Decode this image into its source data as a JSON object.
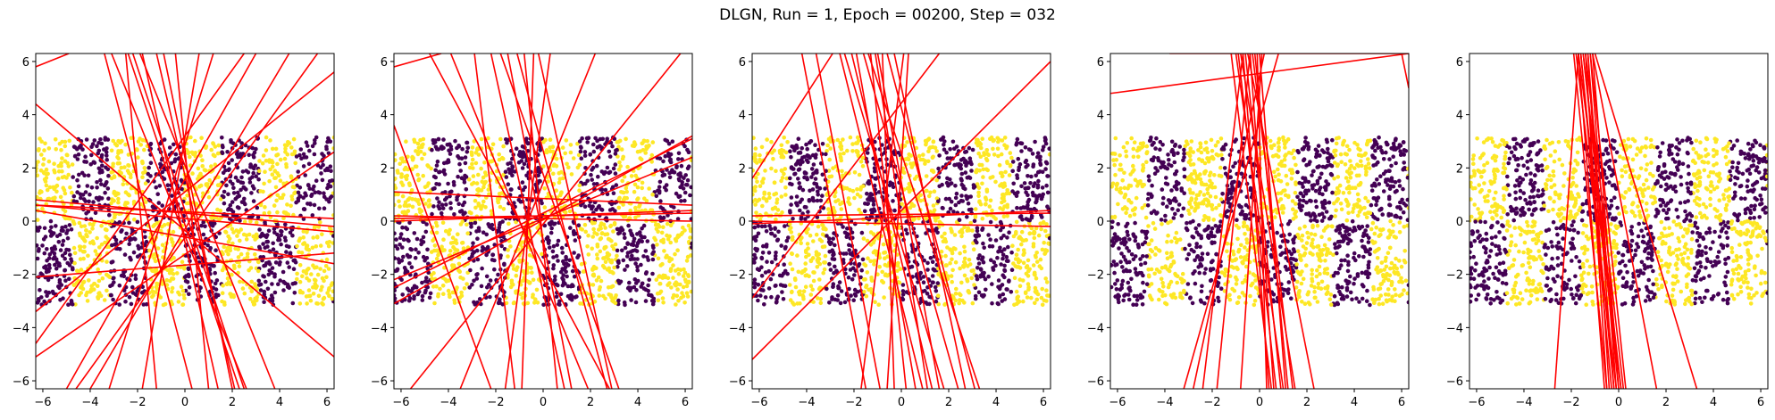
{
  "figure": {
    "title": "DLGN, Run = 1, Epoch = 00200, Step = 032"
  },
  "chart_data": [
    {
      "type": "scatter",
      "xlim": [
        -6.3,
        6.3
      ],
      "ylim": [
        -6.3,
        6.3
      ],
      "xticks": [
        -6,
        -4,
        -2,
        0,
        2,
        4,
        6
      ],
      "yticks": [
        -6,
        -4,
        -2,
        0,
        2,
        4,
        6
      ],
      "class_colors": {
        "class_0": "#440154",
        "class_1": "#fde725"
      },
      "line_color": "#ff0000",
      "lines": [
        [
          -6.3,
          0.6,
          6.3,
          -0.4
        ],
        [
          -6.3,
          0.4,
          6.3,
          -1.6
        ],
        [
          -6.3,
          -2.1,
          6.3,
          -1.2
        ],
        [
          -6.3,
          0.8,
          6.3,
          -0.2
        ],
        [
          -6.3,
          -3.4,
          6.3,
          5.6
        ],
        [
          -6.3,
          -5.1,
          6.3,
          2.6
        ],
        [
          -6.3,
          -4.6,
          2.5,
          6.3
        ],
        [
          -6.3,
          5.8,
          -4.9,
          6.3
        ],
        [
          -5,
          -6.3,
          3,
          6.3
        ],
        [
          -3.2,
          -6.3,
          1.2,
          6.3
        ],
        [
          -3.4,
          6.3,
          0.3,
          -6.3
        ],
        [
          -2.4,
          6.3,
          2.3,
          -6.3
        ],
        [
          -1.8,
          6.3,
          1.4,
          -6.3
        ],
        [
          -1.2,
          6.3,
          2.1,
          -6.3
        ],
        [
          -2.5,
          6.3,
          -1.2,
          -6.3
        ],
        [
          -0.4,
          6.3,
          1,
          -6.3
        ],
        [
          0.6,
          6.3,
          -1.8,
          -6.3
        ],
        [
          -4,
          -6.3,
          4.4,
          6.3
        ],
        [
          -1.9,
          6.3,
          3.8,
          -6.3
        ],
        [
          -2.2,
          6.3,
          2.5,
          -6.3
        ],
        [
          -4.6,
          -6.3,
          5.6,
          6.3
        ],
        [
          -6.3,
          4.4,
          6.3,
          -5.1
        ],
        [
          -0.9,
          6.3,
          2,
          -6.3
        ],
        [
          -6.3,
          0.6,
          6.3,
          0.1
        ],
        [
          -3.1,
          6.3,
          2.6,
          -6.3
        ]
      ]
    },
    {
      "type": "scatter",
      "xlim": [
        -6.3,
        6.3
      ],
      "ylim": [
        -6.3,
        6.3
      ],
      "xticks": [
        -6,
        -4,
        -2,
        0,
        2,
        4,
        6
      ],
      "yticks": [
        -6,
        -4,
        -2,
        0,
        2,
        4,
        6
      ],
      "class_colors": {
        "class_0": "#440154",
        "class_1": "#fde725"
      },
      "line_color": "#ff0000",
      "lines": [
        [
          -6.3,
          0.1,
          6.3,
          0.3
        ],
        [
          -6.3,
          0,
          6.3,
          0.4
        ],
        [
          -6.3,
          1.1,
          6.3,
          0.6
        ],
        [
          -6.3,
          -2.5,
          6.3,
          3.1
        ],
        [
          -6.3,
          -3.1,
          6.3,
          3.2
        ],
        [
          -6.3,
          -2.2,
          6.3,
          2.4
        ],
        [
          -5.6,
          -6.3,
          5.8,
          6.3
        ],
        [
          -4.8,
          6.3,
          2.8,
          -6.3
        ],
        [
          -3.9,
          6.3,
          1.9,
          -6.3
        ],
        [
          -3.5,
          -6.3,
          2.2,
          6.3
        ],
        [
          -2.2,
          6.3,
          0.9,
          -6.3
        ],
        [
          -1.5,
          6.3,
          1.2,
          -6.3
        ],
        [
          -1.1,
          6.3,
          2.7,
          -6.3
        ],
        [
          -0.8,
          6.3,
          0.6,
          -6.3
        ],
        [
          -0.4,
          6.3,
          -0.9,
          -6.3
        ],
        [
          -0.2,
          6.3,
          2.9,
          -6.3
        ],
        [
          0.3,
          6.3,
          -1.6,
          -6.3
        ],
        [
          -2.9,
          6.3,
          -1.2,
          -6.3
        ],
        [
          -1.8,
          6.3,
          3.2,
          -6.3
        ],
        [
          -6.3,
          3.6,
          -2.2,
          -6.3
        ],
        [
          -6.3,
          5.8,
          -4.3,
          6.3
        ],
        [
          -6.3,
          0.2,
          6.3,
          0
        ]
      ]
    },
    {
      "type": "scatter",
      "xlim": [
        -6.3,
        6.3
      ],
      "ylim": [
        -6.3,
        6.3
      ],
      "xticks": [
        -6,
        -4,
        -2,
        0,
        2,
        4,
        6
      ],
      "yticks": [
        -6,
        -4,
        -2,
        0,
        2,
        4,
        6
      ],
      "class_colors": {
        "class_0": "#440154",
        "class_1": "#fde725"
      },
      "line_color": "#ff0000",
      "lines": [
        [
          -6.3,
          0.2,
          6.3,
          0.3
        ],
        [
          -6.3,
          0,
          6.3,
          -0.2
        ],
        [
          -6.3,
          -0.1,
          6.3,
          0.4
        ],
        [
          -6.3,
          -5.2,
          6.3,
          6
        ],
        [
          -6.3,
          -2.9,
          1.6,
          6.3
        ],
        [
          -6.3,
          1.6,
          -2.9,
          6.3
        ],
        [
          -4.2,
          6.3,
          -1.5,
          -6.3
        ],
        [
          -3.6,
          6.3,
          -0.9,
          -6.3
        ],
        [
          -2.4,
          6.3,
          1.8,
          -6.3
        ],
        [
          -2.1,
          6.3,
          1.3,
          -6.3
        ],
        [
          -1.9,
          6.3,
          0.6,
          -6.3
        ],
        [
          -1.6,
          6.3,
          2.4,
          -6.3
        ],
        [
          -1.3,
          6.3,
          0.2,
          -6.3
        ],
        [
          -1,
          6.3,
          1.6,
          -6.3
        ],
        [
          -0.8,
          6.3,
          -0.3,
          -6.3
        ],
        [
          -0.6,
          6.3,
          3.1,
          -6.3
        ],
        [
          -0.3,
          6.3,
          2.7,
          -6.3
        ],
        [
          0.1,
          6.3,
          -1.7,
          -6.3
        ],
        [
          0.3,
          6.3,
          -0.6,
          -6.3
        ],
        [
          -2.6,
          6.3,
          0.9,
          -6.3
        ],
        [
          -1.4,
          6.3,
          3.3,
          -6.3
        ],
        [
          -1.1,
          6.3,
          1.1,
          -6.3
        ]
      ]
    },
    {
      "type": "scatter",
      "xlim": [
        -6.3,
        6.3
      ],
      "ylim": [
        -6.3,
        6.3
      ],
      "xticks": [
        -6,
        -4,
        -2,
        0,
        2,
        4,
        6
      ],
      "yticks": [
        -6,
        -4,
        -2,
        0,
        2,
        4,
        6
      ],
      "class_colors": {
        "class_0": "#440154",
        "class_1": "#fde725"
      },
      "line_color": "#ff0000",
      "lines": [
        [
          -6.3,
          4.8,
          6.3,
          6.3
        ],
        [
          -3.8,
          6.3,
          6.3,
          6.3
        ],
        [
          6,
          6.3,
          6.3,
          5
        ],
        [
          -2.8,
          -6.3,
          0.2,
          6.3
        ],
        [
          -1.8,
          -6.3,
          -0.4,
          6.3
        ],
        [
          -3.2,
          -6.3,
          0.8,
          6.3
        ],
        [
          -1.2,
          6.3,
          0.5,
          -6.3
        ],
        [
          -1,
          6.3,
          1,
          -6.3
        ],
        [
          -0.8,
          6.3,
          1.5,
          -6.3
        ],
        [
          -0.6,
          6.3,
          0.9,
          -6.3
        ],
        [
          -0.5,
          6.3,
          2.3,
          -6.3
        ],
        [
          -0.4,
          6.3,
          0.6,
          -6.3
        ],
        [
          -0.2,
          6.3,
          1.2,
          -6.3
        ],
        [
          -0.1,
          6.3,
          0.3,
          -6.3
        ],
        [
          0,
          6.3,
          1.1,
          -6.3
        ],
        [
          -0.9,
          6.3,
          0.7,
          -6.3
        ],
        [
          -0.7,
          6.3,
          0.4,
          -6.3
        ],
        [
          -0.3,
          6.3,
          1.4,
          -6.3
        ],
        [
          0.1,
          6.3,
          -0.8,
          -6.3
        ],
        [
          -2.4,
          -6.3,
          -0.7,
          6.3
        ]
      ]
    },
    {
      "type": "scatter",
      "xlim": [
        -6.3,
        6.3
      ],
      "ylim": [
        -6.3,
        6.3
      ],
      "xticks": [
        -6,
        -4,
        -2,
        0,
        2,
        4,
        6
      ],
      "yticks": [
        -6,
        -4,
        -2,
        0,
        2,
        4,
        6
      ],
      "class_colors": {
        "class_0": "#440154",
        "class_1": "#fde725"
      },
      "line_color": "#ff0000",
      "lines": [
        [
          -2.7,
          -6.3,
          -1.7,
          6.3
        ],
        [
          -1.8,
          6.3,
          -0.1,
          -6.3
        ],
        [
          -1.7,
          6.3,
          0.1,
          -6.3
        ],
        [
          -1.6,
          6.3,
          -0.3,
          -6.3
        ],
        [
          -1.5,
          6.3,
          0,
          -6.3
        ],
        [
          -1.4,
          6.3,
          0.2,
          -6.3
        ],
        [
          -1.3,
          6.3,
          -0.2,
          -6.3
        ],
        [
          -1.2,
          6.3,
          0.3,
          -6.3
        ],
        [
          -1.1,
          6.3,
          1.6,
          -6.3
        ],
        [
          -1,
          6.3,
          3.3,
          -6.3
        ],
        [
          -1.9,
          6.3,
          -0.5,
          -6.3
        ],
        [
          -1.5,
          6.3,
          0.1,
          -6.3
        ],
        [
          -1.3,
          6.3,
          -0.4,
          -6.3
        ],
        [
          -1.7,
          6.3,
          -0.6,
          -6.3
        ],
        [
          -1.2,
          6.3,
          -0.1,
          -6.3
        ],
        [
          -1.6,
          6.3,
          -0.2,
          -6.3
        ],
        [
          -1.4,
          6.3,
          -0.5,
          -6.3
        ],
        [
          -1.1,
          6.3,
          0,
          -6.3
        ]
      ]
    }
  ]
}
